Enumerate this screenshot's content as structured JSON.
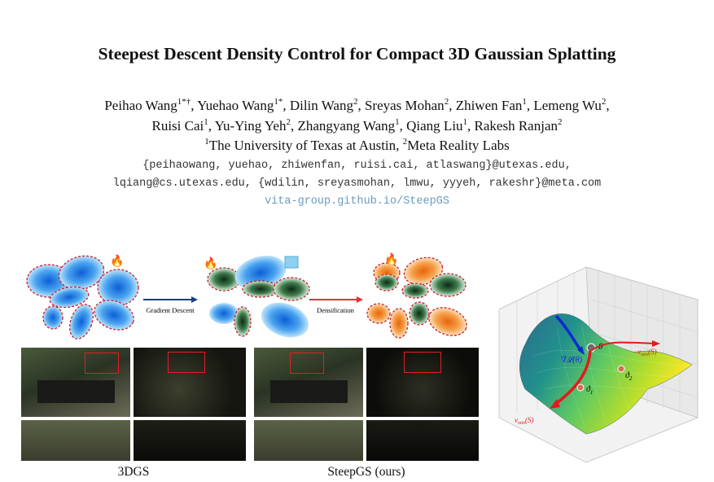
{
  "title": "Steepest Descent Density Control for Compact 3D Gaussian Splatting",
  "authors_line1": [
    {
      "name": "Peihao Wang",
      "sup": "1*†"
    },
    {
      "name": "Yuehao Wang",
      "sup": "1*"
    },
    {
      "name": "Dilin Wang",
      "sup": "2"
    },
    {
      "name": "Sreyas Mohan",
      "sup": "2"
    },
    {
      "name": "Zhiwen Fan",
      "sup": "1"
    },
    {
      "name": "Lemeng Wu",
      "sup": "2"
    }
  ],
  "authors_line2": [
    {
      "name": "Ruisi Cai",
      "sup": "1"
    },
    {
      "name": "Yu-Ying Yeh",
      "sup": "2"
    },
    {
      "name": "Zhangyang Wang",
      "sup": "1"
    },
    {
      "name": "Qiang Liu",
      "sup": "1"
    },
    {
      "name": "Rakesh Ranjan",
      "sup": "2"
    }
  ],
  "affiliations": {
    "aff1_sup": "1",
    "aff1": "The University of Texas at Austin",
    "aff2_sup": "2",
    "aff2": "Meta Reality Labs"
  },
  "emails_line1": "{peihaowang, yuehao, zhiwenfan, ruisi.cai, atlaswang}@utexas.edu,",
  "emails_line2": "lqiang@cs.utexas.edu, {wdilin, sreyasmohan, lmwu, yyyeh, rakeshr}@meta.com",
  "project_url": "vita-group.github.io/SteepGS",
  "diagram": {
    "arrow1_label": "Gradient Descent",
    "arrow2_label": "Densification",
    "colors": {
      "blue": "#3a8fe0",
      "green": "#2f5f3a",
      "orange": "#f08a30",
      "dashed": "#c8202a"
    }
  },
  "captions": {
    "left": "3DGS",
    "right": "SteepGS (ours)"
  },
  "surface": {
    "grad_label": "∇𝓛(θ)",
    "theta_label": "θ",
    "theta1_label": "ϑ",
    "theta1_sub": "1",
    "theta2_label": "ϑ",
    "theta2_sub": "2",
    "vmin_neg_label": "−v",
    "vmin_neg_sub": "min",
    "vmin_neg_arg": "(S)",
    "vmin_label": "v",
    "vmin_sub": "min",
    "vmin_arg": "(S)"
  }
}
